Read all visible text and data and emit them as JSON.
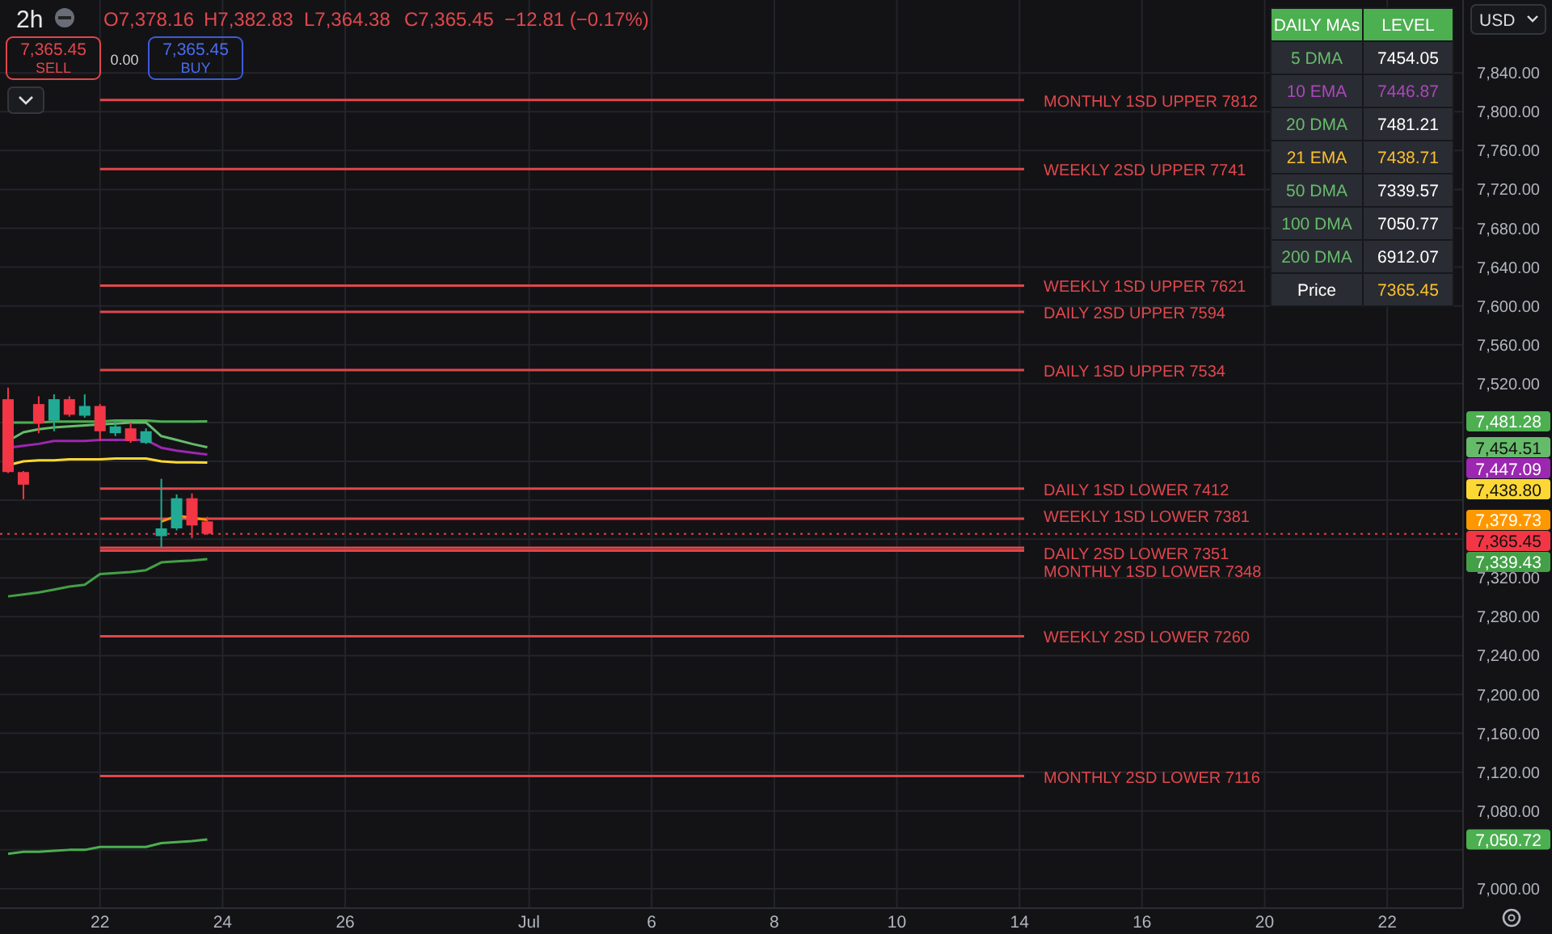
{
  "chart_data": [
    {
      "type": "candlestick",
      "title": "2h",
      "annotations": [
        "O7,378.16",
        "H7,382.83",
        "L7,364.38",
        "C7,365.45",
        "−12.81 (−0.17%)",
        "7,365.45",
        "SELL",
        "0.00",
        "7,365.45",
        "BUY",
        "USD",
        "7,481.28",
        "7,454.51",
        "7,447.09",
        "7,438.80",
        "7,379.73",
        "7,339.43",
        "7,050.72"
      ],
      "categories": [
        null,
        null,
        null,
        null,
        null,
        null,
        "22",
        null,
        null,
        null,
        null,
        null,
        null,
        null,
        "24",
        null,
        null,
        null,
        null,
        null,
        null,
        null,
        "26",
        null,
        null,
        null,
        null,
        null,
        null,
        null,
        null,
        null,
        null,
        null,
        "Jul",
        null,
        null,
        null,
        null,
        null,
        null,
        null,
        "6",
        null,
        null,
        null,
        null,
        null,
        null,
        null,
        "8",
        null,
        null,
        null,
        null,
        null,
        null,
        null,
        "10",
        null,
        null,
        null,
        null,
        null,
        null,
        null,
        "14",
        null,
        null,
        null,
        null,
        null,
        null,
        null,
        "16",
        null,
        null,
        null,
        null,
        null,
        null,
        null,
        "20",
        null,
        null,
        null,
        null,
        null,
        null,
        null,
        "22",
        null,
        null,
        null,
        null
      ],
      "ohlc": [
        [
          7504,
          7516,
          7428,
          7429
        ],
        [
          7429,
          7430,
          7401,
          7416
        ],
        [
          7499,
          7507,
          7469,
          7479
        ],
        [
          7482,
          7509,
          7471,
          7504
        ],
        [
          7504,
          7507,
          7486,
          7488
        ],
        [
          7487,
          7509,
          7485,
          7497
        ],
        [
          7497,
          7499,
          7461,
          7471
        ],
        [
          7469,
          7482,
          7466,
          7476
        ],
        [
          7474,
          7480,
          7459,
          7461
        ],
        [
          7459,
          7474,
          7458,
          7471
        ],
        [
          7363,
          7422,
          7351,
          7371
        ],
        [
          7371,
          7406,
          7369,
          7402
        ],
        [
          7402,
          7407,
          7361,
          7374
        ],
        [
          7378.16,
          7382.83,
          7364.38,
          7365.45
        ],
        null,
        null,
        null,
        null,
        null,
        null,
        null,
        null,
        null,
        null,
        null,
        null,
        null,
        null,
        null,
        null,
        null,
        null,
        null,
        null,
        null,
        null,
        null,
        null,
        null,
        null,
        null,
        null,
        null,
        null,
        null,
        null,
        null,
        null,
        null,
        null,
        null,
        null,
        null,
        null,
        null,
        null,
        null,
        null,
        null,
        null,
        null,
        null,
        null,
        null,
        null,
        null,
        null,
        null,
        null,
        null,
        null,
        null,
        null,
        null,
        null,
        null,
        null,
        null,
        null,
        null,
        null,
        null,
        null,
        null,
        null,
        null,
        null,
        null,
        null,
        null,
        null,
        null,
        null,
        null,
        null
      ],
      "series": [
        {
          "type": "line",
          "color": "#4caf50",
          "values": [
            7480,
            7480,
            7480,
            7481,
            7481,
            7481,
            7481,
            7482,
            7482,
            7482,
            7481,
            7481,
            7481,
            7481.28,
            null,
            null,
            null,
            null,
            null,
            null,
            null,
            null,
            null,
            null,
            null,
            null,
            null,
            null,
            null,
            null,
            null,
            null,
            null,
            null,
            null,
            null,
            null,
            null,
            null,
            null,
            null,
            null,
            null,
            null,
            null,
            null,
            null,
            null,
            null,
            null,
            null,
            null,
            null,
            null,
            null,
            null,
            null,
            null,
            null,
            null,
            null,
            null,
            null,
            null,
            null,
            null,
            null,
            null,
            null,
            null,
            null,
            null,
            null,
            null,
            null,
            null,
            null,
            null,
            null,
            null,
            null,
            null,
            null,
            null,
            null,
            null,
            null,
            null,
            null,
            null,
            null,
            null,
            null,
            null,
            null
          ]
        },
        {
          "type": "line",
          "color": "#66bb6a",
          "values": [
            7461,
            7470,
            7473,
            7475,
            7476,
            7477,
            7478,
            7479,
            7480,
            7480,
            7466,
            7462,
            7458,
            7454.51,
            null,
            null,
            null,
            null,
            null,
            null,
            null,
            null,
            null,
            null,
            null,
            null,
            null,
            null,
            null,
            null,
            null,
            null,
            null,
            null,
            null,
            null,
            null,
            null,
            null,
            null,
            null,
            null,
            null,
            null,
            null,
            null,
            null,
            null,
            null,
            null,
            null,
            null,
            null,
            null,
            null,
            null,
            null,
            null,
            null,
            null,
            null,
            null,
            null,
            null,
            null,
            null,
            null,
            null,
            null,
            null,
            null,
            null,
            null,
            null,
            null,
            null,
            null,
            null,
            null,
            null,
            null,
            null,
            null,
            null,
            null,
            null,
            null,
            null,
            null,
            null,
            null,
            null,
            null,
            null,
            null
          ]
        },
        {
          "type": "line",
          "color": "#9c27b0",
          "values": [
            7454,
            7456,
            7458,
            7461,
            7461,
            7461,
            7462,
            7462,
            7462,
            7462,
            7454,
            7451,
            7449,
            7447.09,
            null,
            null,
            null,
            null,
            null,
            null,
            null,
            null,
            null,
            null,
            null,
            null,
            null,
            null,
            null,
            null,
            null,
            null,
            null,
            null,
            null,
            null,
            null,
            null,
            null,
            null,
            null,
            null,
            null,
            null,
            null,
            null,
            null,
            null,
            null,
            null,
            null,
            null,
            null,
            null,
            null,
            null,
            null,
            null,
            null,
            null,
            null,
            null,
            null,
            null,
            null,
            null,
            null,
            null,
            null,
            null,
            null,
            null,
            null,
            null,
            null,
            null,
            null,
            null,
            null,
            null,
            null,
            null,
            null,
            null,
            null,
            null,
            null,
            null,
            null,
            null,
            null,
            null,
            null,
            null,
            null
          ]
        },
        {
          "type": "line",
          "color": "#fdd835",
          "values": [
            7436,
            7440,
            7441,
            7441,
            7442,
            7442,
            7442,
            7443,
            7443,
            7443,
            7440,
            7439,
            7439,
            7438.8,
            null,
            null,
            null,
            null,
            null,
            null,
            null,
            null,
            null,
            null,
            null,
            null,
            null,
            null,
            null,
            null,
            null,
            null,
            null,
            null,
            null,
            null,
            null,
            null,
            null,
            null,
            null,
            null,
            null,
            null,
            null,
            null,
            null,
            null,
            null,
            null,
            null,
            null,
            null,
            null,
            null,
            null,
            null,
            null,
            null,
            null,
            null,
            null,
            null,
            null,
            null,
            null,
            null,
            null,
            null,
            null,
            null,
            null,
            null,
            null,
            null,
            null,
            null,
            null,
            null,
            null,
            null,
            null,
            null,
            null,
            null,
            null,
            null,
            null,
            null,
            null,
            null,
            null,
            null,
            null,
            null
          ]
        },
        {
          "type": "line",
          "color": "#ff9800",
          "values": [
            null,
            null,
            null,
            null,
            null,
            null,
            null,
            null,
            null,
            null,
            7378,
            7384,
            7382,
            7379.73,
            null,
            null,
            null,
            null,
            null,
            null,
            null,
            null,
            null,
            null,
            null,
            null,
            null,
            null,
            null,
            null,
            null,
            null,
            null,
            null,
            null,
            null,
            null,
            null,
            null,
            null,
            null,
            null,
            null,
            null,
            null,
            null,
            null,
            null,
            null,
            null,
            null,
            null,
            null,
            null,
            null,
            null,
            null,
            null,
            null,
            null,
            null,
            null,
            null,
            null,
            null,
            null,
            null,
            null,
            null,
            null,
            null,
            null,
            null,
            null,
            null,
            null,
            null,
            null,
            null,
            null,
            null,
            null,
            null,
            null,
            null,
            null,
            null,
            null,
            null,
            null,
            null,
            null,
            null,
            null,
            null
          ]
        },
        {
          "type": "line",
          "color": "#43a047",
          "values": [
            7301,
            7303,
            7305,
            7308,
            7311,
            7313,
            7324,
            7325,
            7326,
            7328,
            7336,
            7337,
            7338,
            7339.43,
            null,
            null,
            null,
            null,
            null,
            null,
            null,
            null,
            null,
            null,
            null,
            null,
            null,
            null,
            null,
            null,
            null,
            null,
            null,
            null,
            null,
            null,
            null,
            null,
            null,
            null,
            null,
            null,
            null,
            null,
            null,
            null,
            null,
            null,
            null,
            null,
            null,
            null,
            null,
            null,
            null,
            null,
            null,
            null,
            null,
            null,
            null,
            null,
            null,
            null,
            null,
            null,
            null,
            null,
            null,
            null,
            null,
            null,
            null,
            null,
            null,
            null,
            null,
            null,
            null,
            null,
            null,
            null,
            null,
            null,
            null,
            null,
            null,
            null,
            null,
            null,
            null,
            null,
            null,
            null,
            null
          ]
        },
        {
          "type": "line",
          "color": "#4caf50",
          "values": [
            7036,
            7038,
            7038,
            7039,
            7040,
            7040,
            7043,
            7043,
            7043,
            7043,
            7047,
            7048,
            7049,
            7050.72,
            null,
            null,
            null,
            null,
            null,
            null,
            null,
            null,
            null,
            null,
            null,
            null,
            null,
            null,
            null,
            null,
            null,
            null,
            null,
            null,
            null,
            null,
            null,
            null,
            null,
            null,
            null,
            null,
            null,
            null,
            null,
            null,
            null,
            null,
            null,
            null,
            null,
            null,
            null,
            null,
            null,
            null,
            null,
            null,
            null,
            null,
            null,
            null,
            null,
            null,
            null,
            null,
            null,
            null,
            null,
            null,
            null,
            null,
            null,
            null,
            null,
            null,
            null,
            null,
            null,
            null,
            null,
            null,
            null,
            null,
            null,
            null,
            null,
            null,
            null,
            null,
            null,
            null,
            null,
            null,
            null
          ]
        }
      ],
      "ref_lines": [
        {
          "axis": "y",
          "value": 7812,
          "label": "MONTHLY 1SD UPPER 7812",
          "color": "#e0474c"
        },
        {
          "axis": "y",
          "value": 7741,
          "label": "WEEKLY 2SD UPPER 7741",
          "color": "#e0474c"
        },
        {
          "axis": "y",
          "value": 7621,
          "label": "WEEKLY 1SD UPPER 7621",
          "color": "#e0474c"
        },
        {
          "axis": "y",
          "value": 7594,
          "label": "DAILY 2SD UPPER 7594",
          "color": "#e0474c"
        },
        {
          "axis": "y",
          "value": 7534,
          "label": "DAILY 1SD UPPER 7534",
          "color": "#e0474c"
        },
        {
          "axis": "y",
          "value": 7412,
          "label": "DAILY 1SD LOWER 7412",
          "color": "#e0474c"
        },
        {
          "axis": "y",
          "value": 7381,
          "label": "WEEKLY 1SD LOWER 7381",
          "color": "#e0474c"
        },
        {
          "axis": "y",
          "value": 7351,
          "label": "DAILY 2SD LOWER 7351",
          "color": "#e0474c"
        },
        {
          "axis": "y",
          "value": 7348,
          "label": "MONTHLY 1SD LOWER 7348",
          "color": "#e0474c"
        },
        {
          "axis": "y",
          "value": 7260,
          "label": "WEEKLY 2SD LOWER 7260",
          "color": "#e0474c"
        },
        {
          "axis": "y",
          "value": 7116,
          "label": "MONTHLY 2SD LOWER 7116",
          "color": "#e0474c"
        },
        {
          "axis": "y",
          "value": 7365.45,
          "label": "7,365.45",
          "color": "#f23645",
          "line_style": "dotted"
        }
      ],
      "ylim": [
        6980,
        7915
      ],
      "yticks": [
        {
          "value": 7000,
          "label": "7,000.00"
        },
        {
          "value": 7040,
          "label": null
        },
        {
          "value": 7080,
          "label": "7,080.00"
        },
        {
          "value": 7120,
          "label": "7,120.00"
        },
        {
          "value": 7160,
          "label": "7,160.00"
        },
        {
          "value": 7200,
          "label": "7,200.00"
        },
        {
          "value": 7240,
          "label": "7,240.00"
        },
        {
          "value": 7280,
          "label": "7,280.00"
        },
        {
          "value": 7320,
          "label": "7,320.00"
        },
        {
          "value": 7360,
          "label": null
        },
        {
          "value": 7400,
          "label": null
        },
        {
          "value": 7440,
          "label": null
        },
        {
          "value": 7480,
          "label": null
        },
        {
          "value": 7520,
          "label": "7,520.00"
        },
        {
          "value": 7560,
          "label": "7,560.00"
        },
        {
          "value": 7600,
          "label": "7,600.00"
        },
        {
          "value": 7640,
          "label": "7,640.00"
        },
        {
          "value": 7680,
          "label": "7,680.00"
        },
        {
          "value": 7720,
          "label": "7,720.00"
        },
        {
          "value": 7760,
          "label": "7,760.00"
        },
        {
          "value": 7800,
          "label": "7,800.00"
        },
        {
          "value": 7840,
          "label": "7,840.00"
        }
      ],
      "grid": true
    },
    {
      "type": "other",
      "annotations": [
        "DAILY MAs",
        "LEVEL",
        "5 DMA",
        "7454.05",
        "10 EMA",
        "7446.87",
        "20 DMA",
        "7481.21",
        "21 EMA",
        "7438.71",
        "50 DMA",
        "7339.57",
        "100 DMA",
        "7050.77",
        "200 DMA",
        "6912.07",
        "Price",
        "7365.45"
      ]
    }
  ]
}
